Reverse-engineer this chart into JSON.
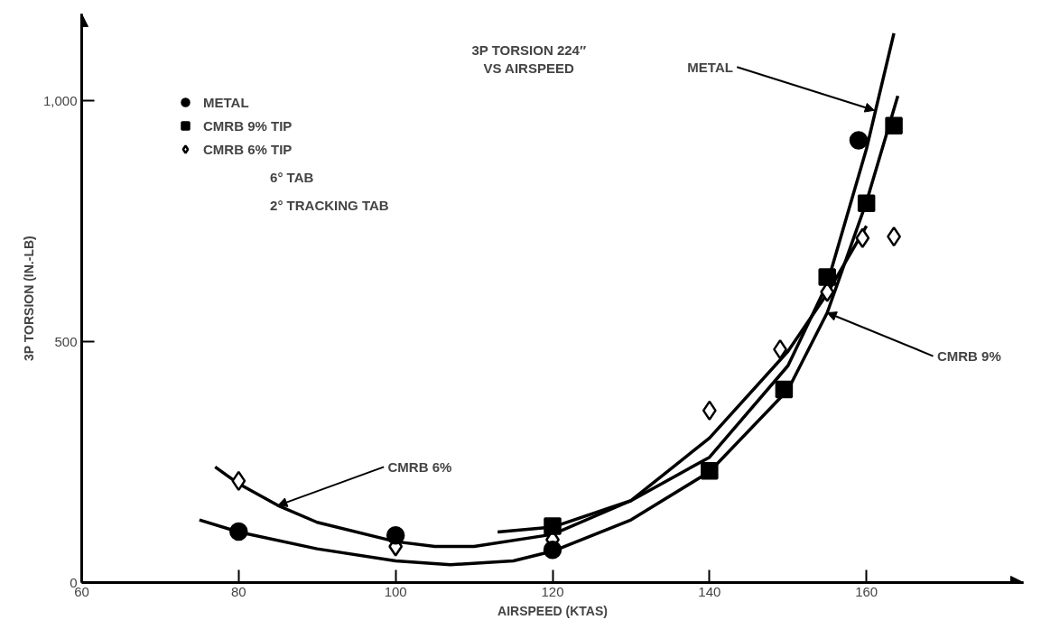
{
  "chart_data": {
    "type": "scatter",
    "title": "3P TORSION 224″\nVS AIRSPEED",
    "xlabel": "AIRSPEED (KTAS)",
    "ylabel": "3P TORSION (IN.-LB)",
    "xlim": [
      60,
      180
    ],
    "ylim": [
      0,
      1180
    ],
    "xticks": [
      60,
      80,
      100,
      120,
      140,
      160
    ],
    "yticks": [
      0,
      500,
      {
        "value": 1000,
        "label": "1,000"
      }
    ],
    "grid": false,
    "legend": "top left",
    "series": [
      {
        "name": "METAL",
        "marker": "circle",
        "color": "#000000",
        "x": [
          80,
          100,
          120,
          140,
          159
        ],
        "values": [
          106,
          98,
          68,
          null,
          918
        ]
      },
      {
        "name": "CMRB 9% TIP",
        "marker": "square",
        "color": "#000000",
        "x": [
          120,
          140,
          149.5,
          155,
          160,
          163.5
        ],
        "values": [
          117,
          232,
          401,
          634,
          787,
          948
        ]
      },
      {
        "name": "CMRB 6% TIP",
        "marker": "diamond",
        "color": "#000000",
        "x": [
          80,
          100,
          120,
          140,
          149,
          155,
          159.5,
          163.5
        ],
        "values": [
          211,
          75,
          89,
          357,
          484,
          603,
          715,
          718
        ]
      },
      {
        "type": "line",
        "color": "#000000",
        "x": [
          113,
          120,
          130,
          140,
          150,
          155,
          160,
          163.5
        ],
        "values": [
          105,
          115,
          170,
          260,
          450,
          620,
          900,
          1140
        ]
      },
      {
        "type": "line",
        "color": "#000000",
        "x": [
          77,
          80,
          85,
          90,
          100,
          105,
          110,
          120,
          130,
          140,
          150,
          155,
          160
        ],
        "values": [
          240,
          205,
          160,
          125,
          85,
          75,
          75,
          100,
          170,
          300,
          480,
          600,
          740
        ]
      },
      {
        "type": "line",
        "color": "#000000",
        "x": [
          75,
          80,
          90,
          100,
          107,
          115,
          120,
          130,
          140,
          150,
          155,
          160,
          164
        ],
        "values": [
          130,
          105,
          70,
          45,
          37,
          45,
          65,
          130,
          230,
          400,
          560,
          790,
          1010
        ]
      }
    ],
    "annotations": [
      "6° TAB",
      "2° TRACKING TAB",
      {
        "text": "METAL",
        "x": 161,
        "y": 980
      },
      {
        "text": "CMRB 9%",
        "x": 155,
        "y": 560
      },
      {
        "text": "CMRB 6%",
        "x": 85,
        "y": 160
      }
    ]
  }
}
